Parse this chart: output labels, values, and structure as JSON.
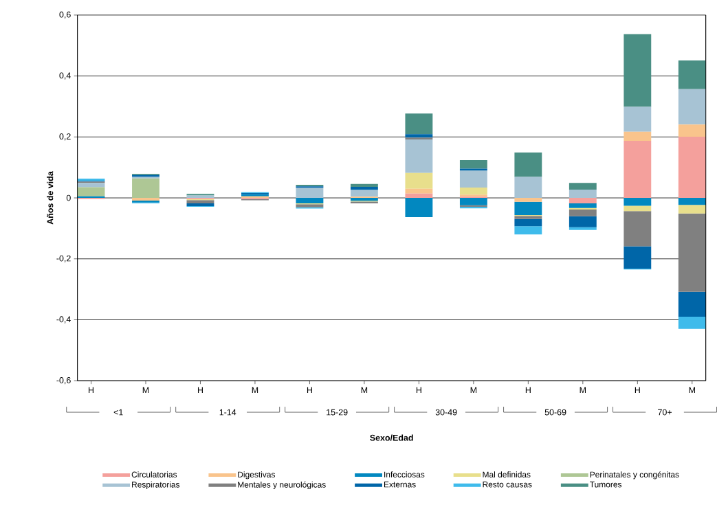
{
  "chart_data": {
    "type": "bar",
    "stacked": true,
    "xlabel": "Sexo/Edad",
    "ylabel": "Años de vida",
    "categories": [
      "H",
      "M",
      "H",
      "M",
      "H",
      "M",
      "H",
      "M",
      "H",
      "M",
      "H",
      "M"
    ],
    "annotations": [
      "<1",
      "1-14",
      "15-29",
      "30-49",
      "50-69",
      "70+"
    ],
    "ylim": [
      -0.6,
      0.6
    ],
    "yticks": [
      {
        "value": -0.6,
        "label": "-0,6"
      },
      {
        "value": -0.4,
        "label": "-0,4"
      },
      {
        "value": -0.2,
        "label": "-0,2"
      },
      0,
      {
        "value": 0.2,
        "label": "0,2"
      },
      {
        "value": 0.4,
        "label": "0,4"
      },
      {
        "value": 0.6,
        "label": "0,6"
      }
    ],
    "grid": "y",
    "legend": "bottom",
    "series": [
      {
        "name": "Circulatorias",
        "color": "#f4a09c",
        "values": [
          -0.004,
          null,
          -0.004,
          -0.004,
          null,
          null,
          0.014,
          0.004,
          null,
          -0.018,
          0.187,
          0.201
        ]
      },
      {
        "name": "Digestivas",
        "color": "#f9c48c",
        "values": [
          null,
          -0.009,
          null,
          0.005,
          null,
          0.004,
          0.016,
          0.007,
          -0.013,
          null,
          0.03,
          0.04
        ]
      },
      {
        "name": "Infecciosas",
        "color": "#0288c0",
        "values": [
          0.005,
          -0.006,
          null,
          0.007,
          -0.018,
          -0.009,
          -0.063,
          -0.024,
          -0.043,
          -0.015,
          -0.026,
          -0.023
        ]
      },
      {
        "name": "Mal definidas",
        "color": "#e8df8c",
        "values": [
          null,
          null,
          -0.003,
          null,
          -0.003,
          null,
          0.052,
          0.023,
          -0.003,
          -0.005,
          -0.017,
          -0.028
        ]
      },
      {
        "name": "Perinatales y congénitas",
        "color": "#aec795",
        "values": [
          0.03,
          0.064,
          null,
          null,
          null,
          -0.003,
          null,
          null,
          null,
          null,
          null,
          null
        ]
      },
      {
        "name": "Respiratorias",
        "color": "#a7c3d4",
        "values": [
          0.014,
          0.005,
          0.008,
          null,
          0.033,
          0.022,
          0.11,
          0.055,
          0.069,
          0.027,
          0.082,
          0.116
        ]
      },
      {
        "name": "Mentales y neurológicas",
        "color": "#808080",
        "values": [
          0.004,
          null,
          -0.011,
          -0.004,
          -0.01,
          -0.006,
          0.006,
          -0.005,
          -0.01,
          -0.022,
          -0.116,
          -0.257
        ]
      },
      {
        "name": "Externas",
        "color": "#0066a8",
        "values": [
          0.003,
          0.006,
          -0.009,
          0.004,
          0.005,
          0.01,
          0.011,
          0.007,
          -0.024,
          -0.036,
          -0.073,
          -0.082
        ]
      },
      {
        "name": "Resto causas",
        "color": "#3fbbeb",
        "values": [
          0.007,
          -0.003,
          -0.002,
          0.003,
          -0.004,
          null,
          null,
          -0.005,
          -0.027,
          -0.009,
          -0.003,
          -0.04
        ]
      },
      {
        "name": "Tumores",
        "color": "#4a8f84",
        "values": [
          null,
          0.004,
          0.005,
          null,
          0.005,
          0.01,
          0.068,
          0.028,
          0.08,
          0.022,
          0.238,
          0.094
        ]
      }
    ]
  }
}
